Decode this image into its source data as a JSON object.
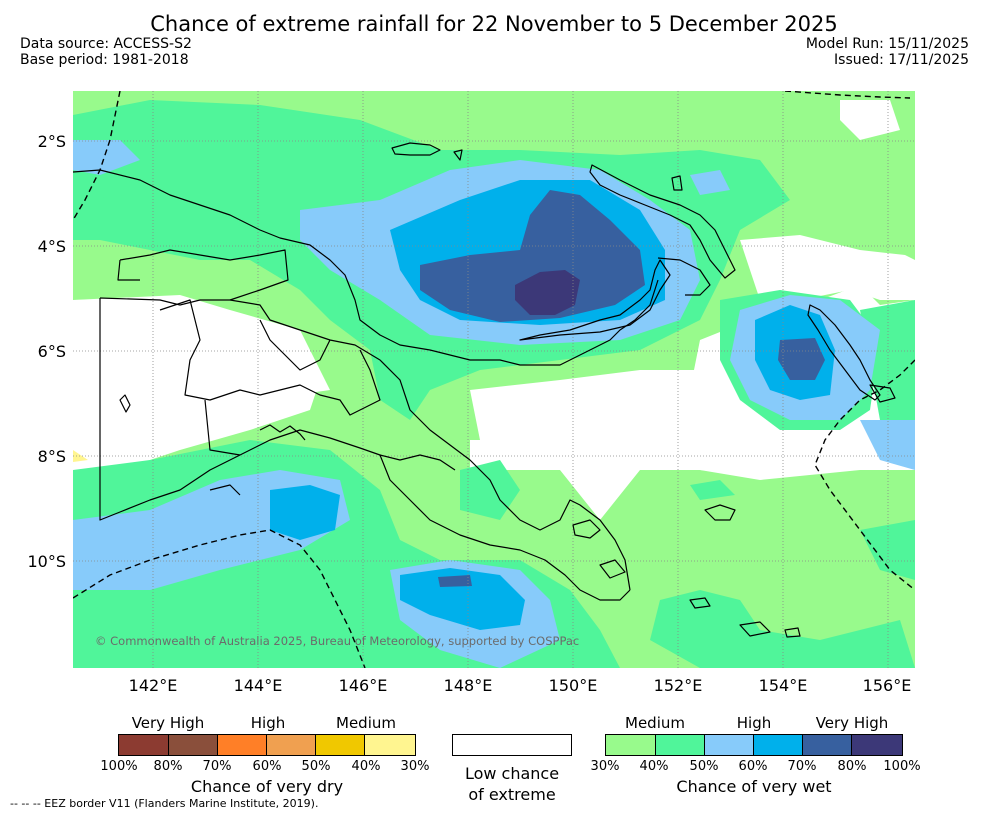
{
  "title": "Chance of extreme rainfall for 22 November to 5 December 2025",
  "data_source": "Data source: ACCESS-S2",
  "base_period": "Base period: 1981-2018",
  "model_run": "Model Run: 15/11/2025",
  "issued": "Issued: 17/11/2025",
  "latitude_labels": [
    "2°S",
    "4°S",
    "6°S",
    "8°S",
    "10°S"
  ],
  "longitude_labels": [
    "142°E",
    "144°E",
    "146°E",
    "148°E",
    "150°E",
    "152°E",
    "154°E",
    "156°E"
  ],
  "copyright": "© Commonwealth of Australia 2025, Bureau of Meteorology, supported by COSPPac",
  "footnote": "--  --  -- EEZ border V11 (Flanders Marine Institute, 2019).",
  "legend": {
    "dry": {
      "categories": [
        "Very High",
        "High",
        "Medium"
      ],
      "ticks": [
        "100%",
        "80%",
        "70%",
        "60%",
        "50%",
        "40%",
        "30%"
      ],
      "colors": [
        "#8c3b31",
        "#8a4f3b",
        "#ff7f27",
        "#f0a050",
        "#f0c800",
        "#fff590"
      ],
      "caption": "Chance of very dry"
    },
    "neutral": {
      "caption_line1": "Low chance",
      "caption_line2": "of extreme",
      "color": "#ffffff"
    },
    "wet": {
      "categories": [
        "Medium",
        "High",
        "Very High"
      ],
      "ticks": [
        "30%",
        "40%",
        "50%",
        "60%",
        "70%",
        "80%",
        "100%"
      ],
      "colors": [
        "#98fa8c",
        "#50f59a",
        "#87cbfa",
        "#00b0eb",
        "#37609f",
        "#3c3878"
      ],
      "caption": "Chance of very wet"
    }
  },
  "colors": {
    "wet_30_40": "#98fa8c",
    "wet_40_50": "#50f59a",
    "wet_50_60": "#87cbfa",
    "wet_60_70": "#00b0eb",
    "wet_70_80": "#37609f",
    "wet_80_100": "#3c3878",
    "dry_30_40": "#fff590",
    "coastline": "#000000"
  }
}
